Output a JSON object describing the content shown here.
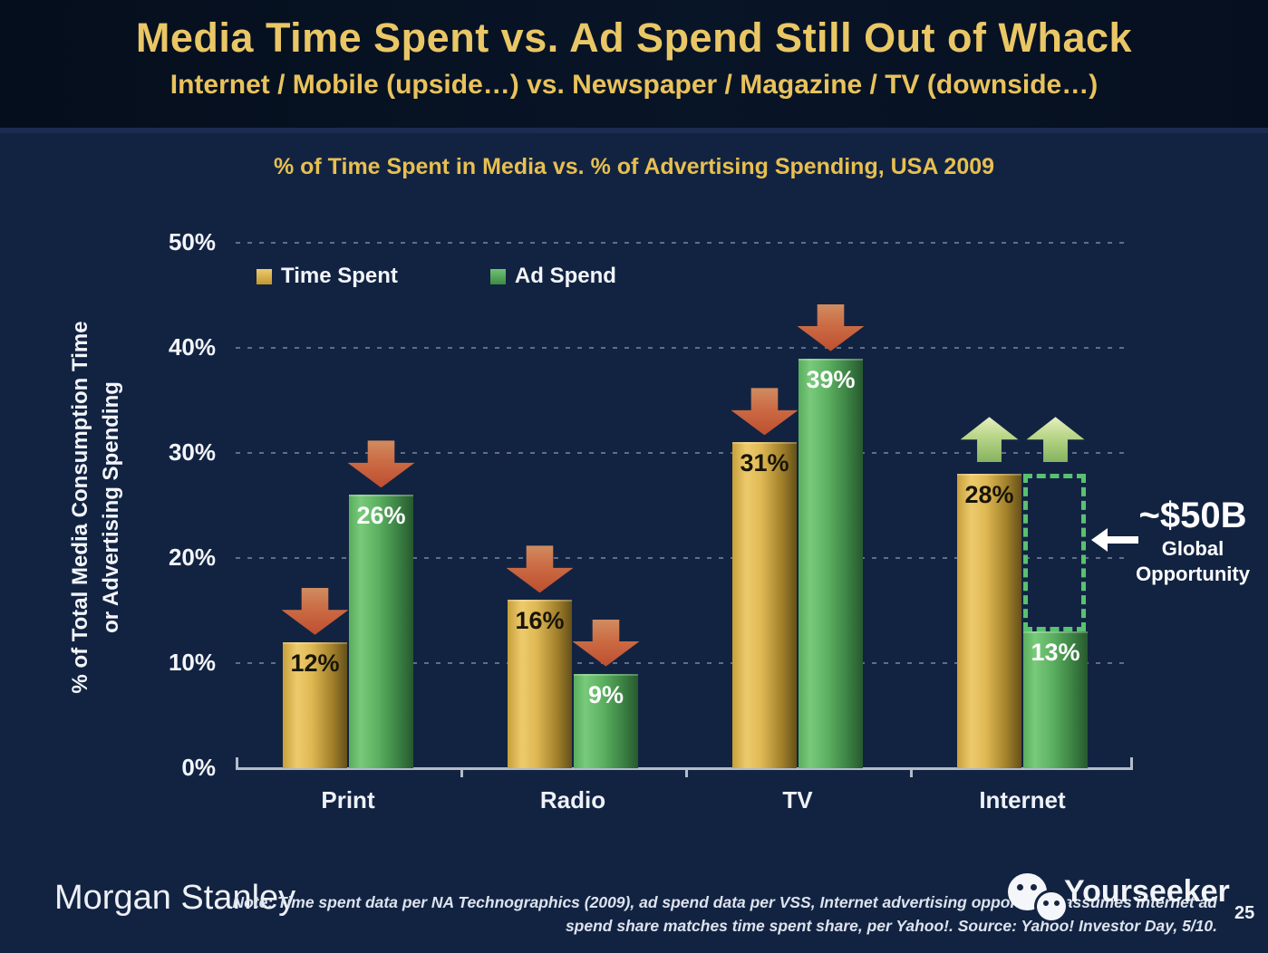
{
  "slide": {
    "title": "Media Time Spent vs. Ad Spend Still Out of Whack",
    "subtitle": "Internet / Mobile (upside…) vs. Newspaper / Magazine / TV (downside…)"
  },
  "chart": {
    "y_title_line1": "% of Total Media Consumption Time",
    "y_title_line2": "or Advertising Spending"
  },
  "chart_data": {
    "type": "bar",
    "title": "% of Time Spent in Media vs. % of Advertising Spending, USA 2009",
    "categories": [
      "Print",
      "Radio",
      "TV",
      "Internet"
    ],
    "series": [
      {
        "name": "Time Spent",
        "values": [
          12,
          16,
          31,
          28
        ],
        "color": "#e0b54e",
        "trend": [
          "down",
          "down",
          "down",
          "up"
        ]
      },
      {
        "name": "Ad Spend",
        "values": [
          26,
          9,
          39,
          13
        ],
        "color": "#57b65b",
        "trend": [
          "down",
          "down",
          "down",
          "up"
        ]
      }
    ],
    "ylabel": "% of Total Media Consumption Time or Advertising Spending",
    "ylim": [
      0,
      50
    ],
    "ytick_step": 10,
    "ytick_suffix": "%",
    "grid": "dashed-horizontal",
    "legend_position": "top-left",
    "annotation_meaning": "Gap between Internet time spent (28%) and Internet ad spend (13%) = ~$50B global opportunity"
  },
  "annotation": {
    "headline": "~$50B",
    "line1": "Global",
    "line2": "Opportunity"
  },
  "colors": {
    "background": "#122342",
    "header_background": "#081527",
    "title_gold": "#eac766",
    "time_spent_bar": "#e0b54e",
    "ad_spend_bar": "#57b65b",
    "down_arrow": "#c35a36",
    "up_arrow": "#b5d486",
    "opportunity_box_border": "#58c26f"
  },
  "footer": {
    "brand": "Morgan Stanley",
    "note_line1": "Note: Time spent data per NA Technographics (2009), ad spend data per VSS, Internet advertising opportunity assumes internet ad",
    "note_line2": "spend share matches time spent share, per Yahoo!. Source: Yahoo! Investor Day, 5/10.",
    "watermark": "Yourseeker",
    "page_number": "25"
  }
}
